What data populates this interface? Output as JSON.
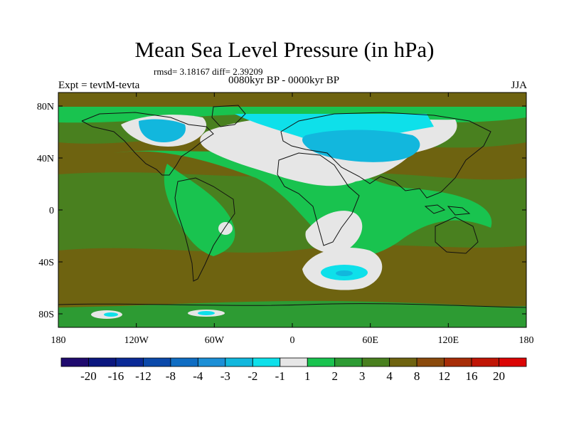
{
  "title": "Mean Sea Level Pressure (in hPa)",
  "stats": "rmsd= 3.18167 diff= 2.39209",
  "experiment": "Expt = tevtM-tevta",
  "period": "0080kyr BP - 0000kyr BP",
  "season": "JJA",
  "axes": {
    "lat_labels": [
      "80N",
      "40N",
      "0",
      "40S",
      "80S"
    ],
    "lat_values": [
      80,
      40,
      0,
      -40,
      -80
    ],
    "lon_labels": [
      "180",
      "120W",
      "60W",
      "0",
      "60E",
      "120E",
      "180"
    ],
    "lon_values": [
      -180,
      -120,
      -60,
      0,
      60,
      120,
      180
    ]
  },
  "colorbar": {
    "labels": [
      "-20",
      "-16",
      "-12",
      "-8",
      "-4",
      "-3",
      "-2",
      "-1",
      "1",
      "2",
      "3",
      "4",
      "8",
      "12",
      "16",
      "20"
    ],
    "colors": [
      "#1f0a6e",
      "#0b177f",
      "#0a2a96",
      "#0b49aa",
      "#0f6dc3",
      "#1c8fd6",
      "#12b7dd",
      "#0ee0ea",
      "#e6e6e6",
      "#19c34f",
      "#2d9b33",
      "#49801f",
      "#6e6310",
      "#8a4a0c",
      "#a72d07",
      "#c01505",
      "#db0505"
    ]
  },
  "colors": {
    "background_field": "#6e6310",
    "positive_mid": "#49801f",
    "positive_low": "#2d9b33",
    "near_zero_pos": "#19c34f",
    "neutral": "#e6e6e6",
    "negative_small": "#0ee0ea",
    "negative_mid": "#12b7dd"
  }
}
